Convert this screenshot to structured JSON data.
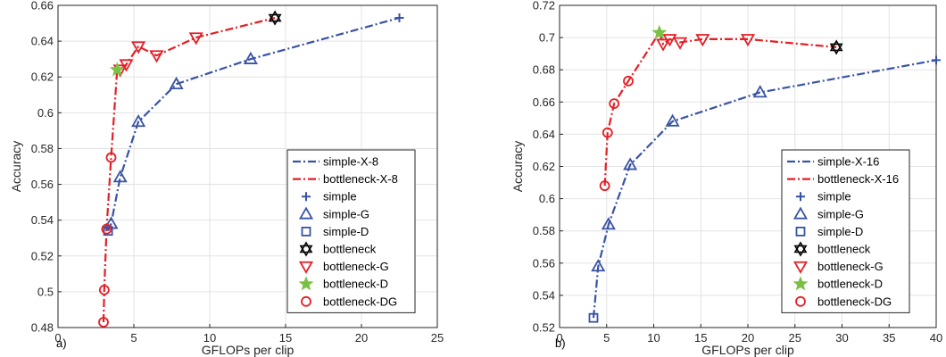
{
  "colors": {
    "simple": "#3953a4",
    "bottleneck": "#e41f26",
    "bottleneck_d": "#7ac143",
    "bottleneck_plain": "#000000",
    "grid": "#e3e3e3",
    "axis": "#262626"
  },
  "chart_data": [
    {
      "type": "line",
      "panel_label": "a)",
      "xlabel": "GFLOPs per clip",
      "ylabel": "Accuracy",
      "xlim": [
        0,
        25
      ],
      "ylim": [
        0.48,
        0.66
      ],
      "xticks": [
        0,
        5,
        10,
        15,
        20,
        25
      ],
      "yticks": [
        0.48,
        0.5,
        0.52,
        0.54,
        0.56,
        0.58,
        0.6,
        0.62,
        0.64,
        0.66
      ],
      "xtick_labels": [
        "0",
        "5",
        "10",
        "15",
        "20",
        "25"
      ],
      "ytick_labels": [
        "0.48",
        "0.5",
        "0.52",
        "0.54",
        "0.56",
        "0.58",
        "0.6",
        "0.62",
        "0.64",
        "0.66"
      ],
      "grid": true,
      "legend_position": "bottom-right",
      "series": [
        {
          "name": "simple-X-8",
          "kind": "line",
          "style": "dashdot",
          "color": "#3953a4",
          "x": [
            3.3,
            3.5,
            4.1,
            5.3,
            7.8,
            12.7,
            22.5
          ],
          "y": [
            0.534,
            0.538,
            0.564,
            0.595,
            0.616,
            0.63,
            0.653
          ]
        },
        {
          "name": "bottleneck-X-8",
          "kind": "line",
          "style": "dashdot",
          "color": "#e41f26",
          "x": [
            3.0,
            3.05,
            3.2,
            3.5,
            3.9,
            4.1,
            4.5,
            5.3,
            6.5,
            9.1,
            14.3
          ],
          "y": [
            0.483,
            0.501,
            0.535,
            0.575,
            0.624,
            0.624,
            0.627,
            0.637,
            0.632,
            0.642,
            0.653
          ]
        },
        {
          "name": "simple",
          "kind": "marker",
          "marker": "plus",
          "color": "#3953a4",
          "x": [
            22.5
          ],
          "y": [
            0.653
          ]
        },
        {
          "name": "simple-G",
          "kind": "marker",
          "marker": "triangle-up",
          "color": "#3953a4",
          "x": [
            3.5,
            4.1,
            5.3,
            7.8,
            12.7
          ],
          "y": [
            0.538,
            0.564,
            0.595,
            0.616,
            0.63
          ]
        },
        {
          "name": "simple-D",
          "kind": "marker",
          "marker": "square",
          "color": "#3953a4",
          "x": [
            3.3
          ],
          "y": [
            0.534
          ]
        },
        {
          "name": "bottleneck",
          "kind": "marker",
          "marker": "hexagram",
          "color": "#000000",
          "x": [
            14.3
          ],
          "y": [
            0.653
          ]
        },
        {
          "name": "bottleneck-G",
          "kind": "marker",
          "marker": "triangle-down",
          "color": "#e41f26",
          "x": [
            4.1,
            4.5,
            5.3,
            6.5,
            9.1
          ],
          "y": [
            0.624,
            0.627,
            0.637,
            0.632,
            0.642
          ]
        },
        {
          "name": "bottleneck-D",
          "kind": "marker",
          "marker": "star",
          "color": "#7ac143",
          "x": [
            3.9
          ],
          "y": [
            0.624
          ]
        },
        {
          "name": "bottleneck-DG",
          "kind": "marker",
          "marker": "circle",
          "color": "#e41f26",
          "x": [
            3.0,
            3.05,
            3.2,
            3.5
          ],
          "y": [
            0.483,
            0.501,
            0.535,
            0.575
          ]
        }
      ]
    },
    {
      "type": "line",
      "panel_label": "b)",
      "xlabel": "GFLOPs per clip",
      "ylabel": "Accuracy",
      "xlim": [
        0,
        40
      ],
      "ylim": [
        0.52,
        0.72
      ],
      "xticks": [
        0,
        5,
        10,
        15,
        20,
        25,
        30,
        35,
        40
      ],
      "yticks": [
        0.52,
        0.54,
        0.56,
        0.58,
        0.6,
        0.62,
        0.64,
        0.66,
        0.68,
        0.7,
        0.72
      ],
      "xtick_labels": [
        "0",
        "5",
        "10",
        "15",
        "20",
        "25",
        "30",
        "35",
        "40"
      ],
      "ytick_labels": [
        "0.52",
        "0.54",
        "0.56",
        "0.58",
        "0.6",
        "0.62",
        "0.64",
        "0.66",
        "0.68",
        "0.7",
        "0.72"
      ],
      "grid": true,
      "legend_position": "bottom-right",
      "series": [
        {
          "name": "simple-X-16",
          "kind": "line",
          "style": "dashdot",
          "color": "#3953a4",
          "x": [
            3.6,
            4.1,
            5.2,
            7.5,
            12.0,
            21.3,
            40.0
          ],
          "y": [
            0.526,
            0.558,
            0.584,
            0.621,
            0.648,
            0.666,
            0.686
          ]
        },
        {
          "name": "bottleneck-X-16",
          "kind": "line",
          "style": "dashdot",
          "color": "#e41f26",
          "x": [
            4.8,
            5.1,
            5.8,
            7.3,
            10.6,
            11.0,
            11.7,
            12.8,
            15.2,
            20.0,
            29.4
          ],
          "y": [
            0.608,
            0.641,
            0.659,
            0.673,
            0.703,
            0.696,
            0.699,
            0.697,
            0.699,
            0.699,
            0.694
          ]
        },
        {
          "name": "simple",
          "kind": "marker",
          "marker": "plus",
          "color": "#3953a4",
          "x": [
            40.0
          ],
          "y": [
            0.686
          ]
        },
        {
          "name": "simple-G",
          "kind": "marker",
          "marker": "triangle-up",
          "color": "#3953a4",
          "x": [
            4.1,
            5.2,
            7.5,
            12.0,
            21.3
          ],
          "y": [
            0.558,
            0.584,
            0.621,
            0.648,
            0.666
          ]
        },
        {
          "name": "simple-D",
          "kind": "marker",
          "marker": "square",
          "color": "#3953a4",
          "x": [
            3.6
          ],
          "y": [
            0.526
          ]
        },
        {
          "name": "bottleneck",
          "kind": "marker",
          "marker": "hexagram",
          "color": "#000000",
          "x": [
            29.4
          ],
          "y": [
            0.694
          ]
        },
        {
          "name": "bottleneck-G",
          "kind": "marker",
          "marker": "triangle-down",
          "color": "#e41f26",
          "x": [
            11.0,
            11.7,
            12.8,
            15.2,
            20.0
          ],
          "y": [
            0.696,
            0.699,
            0.697,
            0.699,
            0.699
          ]
        },
        {
          "name": "bottleneck-D",
          "kind": "marker",
          "marker": "star",
          "color": "#7ac143",
          "x": [
            10.6
          ],
          "y": [
            0.703
          ]
        },
        {
          "name": "bottleneck-DG",
          "kind": "marker",
          "marker": "circle",
          "color": "#e41f26",
          "x": [
            4.8,
            5.1,
            5.8,
            7.3
          ],
          "y": [
            0.608,
            0.641,
            0.659,
            0.673
          ]
        }
      ]
    }
  ]
}
